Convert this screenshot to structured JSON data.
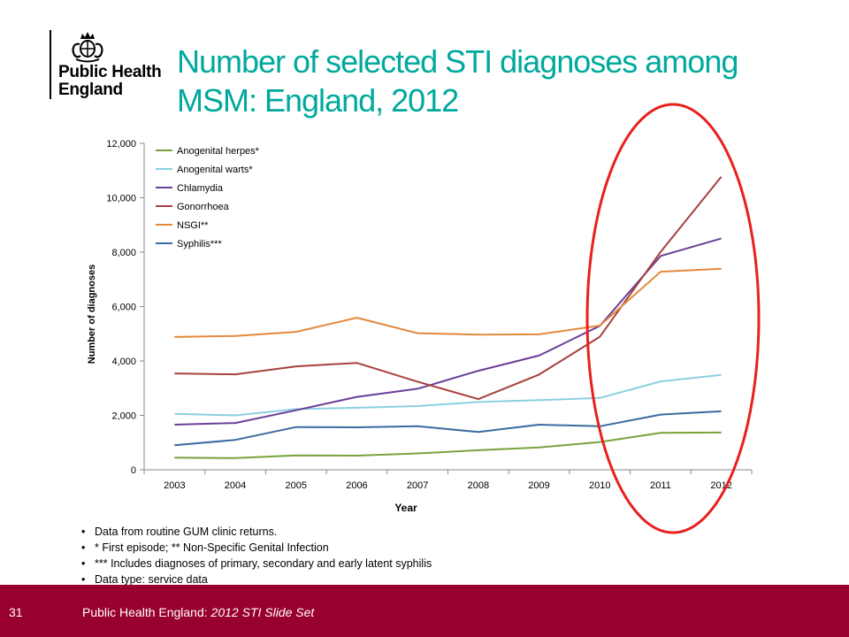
{
  "header": {
    "org_line1": "Public Health",
    "org_line2": "England",
    "title": "Number of selected STI diagnoses among MSM: England, 2012",
    "crest_icon": "royal-crest-icon"
  },
  "chart_data": {
    "type": "line",
    "x": [
      "2003",
      "2004",
      "2005",
      "2006",
      "2007",
      "2008",
      "2009",
      "2010",
      "2011",
      "2012"
    ],
    "xlabel": "Year",
    "ylabel": "Number of diagnoses",
    "ylim": [
      0,
      12000
    ],
    "yticks": [
      0,
      2000,
      4000,
      6000,
      8000,
      10000,
      12000
    ],
    "ytick_labels": [
      "0",
      "2,000",
      "4,000",
      "6,000",
      "8,000",
      "10,000",
      "12,000"
    ],
    "grid": false,
    "legend_position": "top-left",
    "series": [
      {
        "name": "Anogenital herpes*",
        "color": "#77a33b",
        "values": [
          450,
          430,
          530,
          520,
          600,
          720,
          820,
          1020,
          1360,
          1370
        ]
      },
      {
        "name": "Anogenital warts*",
        "color": "#8ccfe0",
        "values": [
          2060,
          2000,
          2230,
          2280,
          2340,
          2490,
          2560,
          2640,
          3250,
          3490
        ]
      },
      {
        "name": "Chlamydia",
        "color": "#6b3f98",
        "values": [
          1660,
          1720,
          2190,
          2680,
          2980,
          3640,
          4200,
          5290,
          7860,
          8500
        ]
      },
      {
        "name": "Gonorrhoea",
        "color": "#a8403e",
        "values": [
          3540,
          3510,
          3800,
          3930,
          3240,
          2600,
          3500,
          4890,
          8010,
          10770
        ]
      },
      {
        "name": "NSGI**",
        "color": "#e4893d",
        "values": [
          4880,
          4920,
          5070,
          5590,
          5020,
          4970,
          4980,
          5300,
          7280,
          7390
        ]
      },
      {
        "name": "Syphilis***",
        "color": "#3b6aa0",
        "values": [
          900,
          1100,
          1570,
          1560,
          1600,
          1390,
          1660,
          1600,
          2030,
          2150
        ]
      }
    ],
    "highlight": {
      "shape": "ellipse",
      "color": "#e8201e",
      "covers_years": [
        "2010",
        "2011",
        "2012"
      ]
    }
  },
  "notes": [
    "Data from routine GUM clinic returns.",
    "* First episode; ** Non-Specific Genital Infection",
    "*** Includes diagnoses of primary, secondary and early latent syphilis",
    "Data type: service data"
  ],
  "footer": {
    "slide_number": "31",
    "source_prefix": "Public Health England: ",
    "source_title": "2012 STI Slide Set"
  }
}
